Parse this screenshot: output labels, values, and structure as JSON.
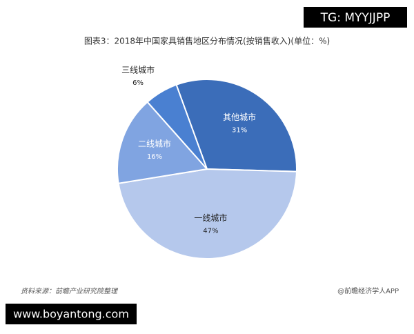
{
  "chart_data": {
    "type": "pie",
    "title": "图表3：2018年中国家具销售地区分布情况(按销售收入)(单位：%)",
    "categories": [
      "其他城市",
      "一线城市",
      "二线城市",
      "三线城市"
    ],
    "values": [
      31,
      47,
      16,
      6
    ],
    "value_labels": [
      "31%",
      "47%",
      "16%",
      "6%"
    ],
    "colors": [
      "#3b6db9",
      "#b5c8ec",
      "#80a4e1",
      "#4a80d1"
    ],
    "source": "资料来源：前瞻产业研究院整理",
    "credit": "@前瞻经济学人APP"
  },
  "overlays": {
    "top_tag": "TG: MYYJJPP",
    "bottom_tag": "www.boyantong.com"
  }
}
